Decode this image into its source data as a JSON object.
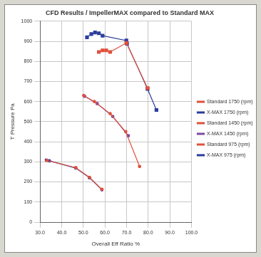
{
  "chart_data": {
    "type": "scatter",
    "title": "CFD Results / ImpellerMAX compared to Standard MAX",
    "x_label": "Overall Eff Ratio %",
    "y_label": "T Pressure Pa",
    "xlim": [
      30,
      100
    ],
    "xticks": [
      {
        "value": 30,
        "label": "30.0"
      },
      {
        "value": 40,
        "label": "40.0"
      },
      {
        "value": 50,
        "label": "50.0"
      },
      {
        "value": 60,
        "label": "60.0"
      },
      {
        "value": 70,
        "label": "70.0"
      },
      {
        "value": 80,
        "label": "80.0"
      },
      {
        "value": 90,
        "label": "90.0"
      },
      {
        "value": 100,
        "label": "100.0"
      }
    ],
    "ylim": [
      0,
      1000
    ],
    "yticks": [
      0,
      100,
      200,
      300,
      400,
      500,
      600,
      700,
      800,
      900,
      1000
    ],
    "grid": true,
    "legend": "right",
    "series": [
      {
        "name": "Standard 1750 (rpm)",
        "color": "#e0503c",
        "marker": "square",
        "line_style": "solid",
        "x": [
          57.2,
          58.9,
          60.6,
          62.4,
          69.9,
          79.7
        ],
        "values": [
          847,
          855,
          855,
          847,
          892,
          667
        ]
      },
      {
        "name": "X-MAX 1750 (rpm)",
        "color": "#2c3c9c",
        "marker": "square",
        "line_style": "solid",
        "x": [
          51.7,
          53.7,
          55.4,
          57.2,
          58.9,
          69.9,
          70.2,
          79.7,
          83.8
        ],
        "values": [
          920,
          936,
          944,
          940,
          928,
          904,
          888,
          663,
          558
        ]
      },
      {
        "name": "Standard 1450 (rpm)",
        "color": "#e0503c",
        "marker": "circle",
        "line_style": "solid",
        "x": [
          50.2,
          55.1,
          62.4,
          69.6,
          76.0
        ],
        "values": [
          630,
          600,
          540,
          450,
          277
        ]
      },
      {
        "name": "X-MAX 1450 (rpm)",
        "color": "#7a4aa0",
        "marker": "circle",
        "line_style": "solid",
        "x": [
          50.6,
          56.4,
          63.6,
          70.8
        ],
        "values": [
          626,
          590,
          526,
          430
        ]
      },
      {
        "name": "Standard 975 (rpm)",
        "color": "#e0503c",
        "marker": "circle",
        "line_style": "solid",
        "x": [
          33.2,
          46.5,
          52.8,
          58.6
        ],
        "values": [
          307,
          271,
          223,
          163
        ]
      },
      {
        "name": "X-MAX 975 (rpm)",
        "color": "#2c3c9c",
        "marker": "circle",
        "line_style": "solid",
        "x": [
          32.9,
          34.3,
          46.5,
          52.8,
          58.6
        ],
        "values": [
          309,
          305,
          269,
          221,
          161
        ]
      }
    ]
  }
}
